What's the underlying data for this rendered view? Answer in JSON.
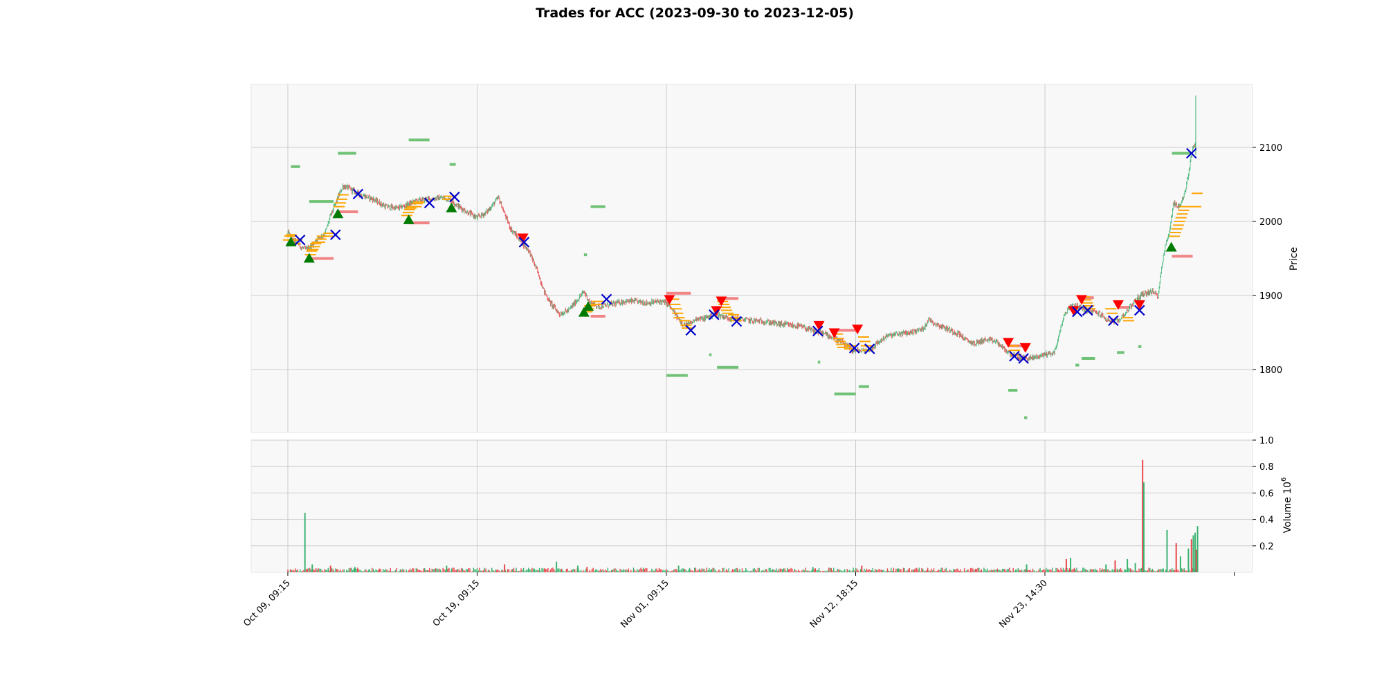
{
  "chart_data": {
    "type": "candlestick",
    "title": "Trades for ACC (2023-09-30 to 2023-12-05)",
    "colors": {
      "up": "#3cb371",
      "down": "#e8474b",
      "buy_marker": "#007a00",
      "sell_marker": "#ff0000",
      "exit_marker": "#0000cc",
      "order_level": "#ffa500",
      "support_zone": "#57b85f",
      "resistance_zone": "#f07070",
      "panel_bg": "#f8f8f8",
      "grid": "#cccccc"
    },
    "price_panel": {
      "ylabel": "Price",
      "ylim": [
        1715,
        2185
      ],
      "yticks": [
        1800,
        1900,
        2000,
        2100
      ],
      "grid": true
    },
    "volume_panel": {
      "ylabel": "Volume  10",
      "ylabel_exponent": "6",
      "ylim": [
        0,
        1.0
      ],
      "yticks": [
        0.2,
        0.4,
        0.6,
        0.8,
        1.0
      ],
      "grid": true
    },
    "x_axis": {
      "xlim": [
        -60,
        1580
      ],
      "ticks": [
        {
          "x": 0,
          "label": "Oct 09, 09:15"
        },
        {
          "x": 310,
          "label": "Oct 19, 09:15"
        },
        {
          "x": 620,
          "label": "Nov 01, 09:15"
        },
        {
          "x": 930,
          "label": "Nov 12, 18:15"
        },
        {
          "x": 1240,
          "label": "Nov 23, 14:30"
        },
        {
          "x": 1550,
          "label": ""
        }
      ]
    },
    "price_path": [
      [
        0,
        1985
      ],
      [
        8,
        1975
      ],
      [
        15,
        1972
      ],
      [
        22,
        1965
      ],
      [
        30,
        1962
      ],
      [
        40,
        1968
      ],
      [
        50,
        1978
      ],
      [
        60,
        1982
      ],
      [
        70,
        2008
      ],
      [
        80,
        2028
      ],
      [
        90,
        2048
      ],
      [
        100,
        2045
      ],
      [
        110,
        2040
      ],
      [
        120,
        2036
      ],
      [
        140,
        2030
      ],
      [
        160,
        2020
      ],
      [
        180,
        2018
      ],
      [
        195,
        2022
      ],
      [
        210,
        2028
      ],
      [
        230,
        2030
      ],
      [
        250,
        2032
      ],
      [
        265,
        2030
      ],
      [
        280,
        2020
      ],
      [
        295,
        2012
      ],
      [
        310,
        2005
      ],
      [
        325,
        2012
      ],
      [
        345,
        2032
      ],
      [
        355,
        2010
      ],
      [
        365,
        1990
      ],
      [
        380,
        1975
      ],
      [
        395,
        1960
      ],
      [
        410,
        1930
      ],
      [
        420,
        1905
      ],
      [
        430,
        1890
      ],
      [
        445,
        1875
      ],
      [
        460,
        1880
      ],
      [
        475,
        1895
      ],
      [
        485,
        1905
      ],
      [
        495,
        1890
      ],
      [
        510,
        1885
      ],
      [
        530,
        1888
      ],
      [
        550,
        1892
      ],
      [
        570,
        1892
      ],
      [
        590,
        1890
      ],
      [
        610,
        1892
      ],
      [
        620,
        1890
      ],
      [
        630,
        1880
      ],
      [
        640,
        1868
      ],
      [
        650,
        1860
      ],
      [
        660,
        1862
      ],
      [
        670,
        1870
      ],
      [
        680,
        1868
      ],
      [
        690,
        1872
      ],
      [
        700,
        1875
      ],
      [
        720,
        1870
      ],
      [
        740,
        1868
      ],
      [
        760,
        1866
      ],
      [
        780,
        1865
      ],
      [
        800,
        1862
      ],
      [
        820,
        1860
      ],
      [
        840,
        1858
      ],
      [
        860,
        1852
      ],
      [
        880,
        1848
      ],
      [
        900,
        1840
      ],
      [
        915,
        1832
      ],
      [
        925,
        1826
      ],
      [
        940,
        1825
      ],
      [
        955,
        1828
      ],
      [
        965,
        1835
      ],
      [
        980,
        1845
      ],
      [
        1000,
        1848
      ],
      [
        1020,
        1850
      ],
      [
        1040,
        1855
      ],
      [
        1050,
        1868
      ],
      [
        1060,
        1862
      ],
      [
        1080,
        1855
      ],
      [
        1100,
        1848
      ],
      [
        1110,
        1840
      ],
      [
        1125,
        1835
      ],
      [
        1140,
        1840
      ],
      [
        1160,
        1838
      ],
      [
        1175,
        1826
      ],
      [
        1190,
        1818
      ],
      [
        1200,
        1816
      ],
      [
        1215,
        1815
      ],
      [
        1230,
        1818
      ],
      [
        1245,
        1822
      ],
      [
        1255,
        1822
      ],
      [
        1262,
        1842
      ],
      [
        1270,
        1870
      ],
      [
        1280,
        1885
      ],
      [
        1290,
        1888
      ],
      [
        1300,
        1882
      ],
      [
        1310,
        1880
      ],
      [
        1320,
        1878
      ],
      [
        1330,
        1875
      ],
      [
        1340,
        1868
      ],
      [
        1350,
        1865
      ],
      [
        1360,
        1866
      ],
      [
        1370,
        1875
      ],
      [
        1380,
        1885
      ],
      [
        1390,
        1895
      ],
      [
        1400,
        1902
      ],
      [
        1415,
        1905
      ],
      [
        1425,
        1900
      ],
      [
        1435,
        1960
      ],
      [
        1445,
        1990
      ],
      [
        1450,
        2025
      ],
      [
        1460,
        2020
      ],
      [
        1470,
        2040
      ],
      [
        1478,
        2080
      ],
      [
        1482,
        2100
      ],
      [
        1486,
        2105
      ]
    ],
    "volume_spikes": [
      [
        28,
        0.45
      ],
      [
        40,
        0.06
      ],
      [
        70,
        0.05
      ],
      [
        110,
        0.04
      ],
      [
        260,
        0.05
      ],
      [
        355,
        0.06
      ],
      [
        440,
        0.08
      ],
      [
        475,
        0.05
      ],
      [
        490,
        0.04
      ],
      [
        640,
        0.05
      ],
      [
        860,
        0.04
      ],
      [
        940,
        0.05
      ],
      [
        1000,
        0.03
      ],
      [
        1210,
        0.06
      ],
      [
        1275,
        0.1
      ],
      [
        1282,
        0.11
      ],
      [
        1340,
        0.06
      ],
      [
        1355,
        0.09
      ],
      [
        1375,
        0.1
      ],
      [
        1388,
        0.07
      ],
      [
        1400,
        0.85
      ],
      [
        1402,
        0.68
      ],
      [
        1440,
        0.32
      ],
      [
        1455,
        0.22
      ],
      [
        1462,
        0.12
      ],
      [
        1475,
        0.18
      ],
      [
        1480,
        0.25
      ],
      [
        1483,
        0.28
      ],
      [
        1486,
        0.3
      ],
      [
        1488,
        0.17
      ],
      [
        1490,
        0.35
      ]
    ],
    "buy_markers": [
      [
        5,
        1972
      ],
      [
        35,
        1950
      ],
      [
        82,
        2010
      ],
      [
        198,
        2002
      ],
      [
        268,
        2018
      ],
      [
        485,
        1877
      ],
      [
        492,
        1885
      ],
      [
        1447,
        1965
      ]
    ],
    "sell_markers": [
      [
        385,
        1978
      ],
      [
        625,
        1895
      ],
      [
        702,
        1880
      ],
      [
        710,
        1893
      ],
      [
        870,
        1860
      ],
      [
        895,
        1850
      ],
      [
        933,
        1855
      ],
      [
        1180,
        1837
      ],
      [
        1208,
        1830
      ],
      [
        1287,
        1880
      ],
      [
        1300,
        1895
      ],
      [
        1360,
        1888
      ],
      [
        1395,
        1888
      ]
    ],
    "exit_markers": [
      [
        20,
        1975
      ],
      [
        78,
        1982
      ],
      [
        115,
        2037
      ],
      [
        232,
        2025
      ],
      [
        273,
        2033
      ],
      [
        387,
        1972
      ],
      [
        522,
        1895
      ],
      [
        660,
        1853
      ],
      [
        698,
        1874
      ],
      [
        735,
        1865
      ],
      [
        868,
        1852
      ],
      [
        928,
        1829
      ],
      [
        953,
        1828
      ],
      [
        1190,
        1818
      ],
      [
        1205,
        1815
      ],
      [
        1293,
        1878
      ],
      [
        1310,
        1880
      ],
      [
        1352,
        1866
      ],
      [
        1395,
        1880
      ],
      [
        1480,
        2092
      ]
    ],
    "order_levels": [
      [
        1,
        [
          1975,
          1980,
          1982
        ]
      ],
      [
        12,
        [
          1970,
          1975
        ]
      ],
      [
        37,
        [
          1955,
          1960,
          1962,
          1966,
          1970,
          1972
        ]
      ],
      [
        52,
        [
          1972,
          1976,
          1980
        ]
      ],
      [
        65,
        [
          1980,
          1984
        ]
      ],
      [
        84,
        [
          2020,
          2025,
          2030,
          2036
        ]
      ],
      [
        195,
        [
          2008,
          2012,
          2016,
          2018,
          2020
        ]
      ],
      [
        210,
        [
          2020,
          2024,
          2026
        ]
      ],
      [
        262,
        [
          2030,
          2034
        ]
      ],
      [
        490,
        [
          1878,
          1882,
          1886
        ]
      ],
      [
        505,
        [
          1888,
          1892
        ]
      ],
      [
        632,
        [
          1895,
          1888,
          1882,
          1876,
          1870
        ]
      ],
      [
        650,
        [
          1866,
          1860,
          1856
        ]
      ],
      [
        712,
        [
          1892,
          1888,
          1884,
          1880,
          1876
        ]
      ],
      [
        730,
        [
          1874,
          1870,
          1866
        ]
      ],
      [
        900,
        [
          1848,
          1842,
          1838,
          1834,
          1830
        ]
      ],
      [
        920,
        [
          1828,
          1832
        ]
      ],
      [
        943,
        [
          1844,
          1838,
          1832,
          1826
        ]
      ],
      [
        1188,
        [
          1832,
          1826,
          1820
        ]
      ],
      [
        1305,
        [
          1898,
          1894,
          1890,
          1886,
          1882
        ]
      ],
      [
        1348,
        [
          1882,
          1876
        ]
      ],
      [
        1375,
        [
          1870,
          1866
        ]
      ],
      [
        1452,
        [
          1980,
          1985,
          1990,
          1995,
          2000,
          2005
        ]
      ],
      [
        1465,
        [
          2010,
          2015,
          2020
        ]
      ],
      [
        1487,
        [
          2020,
          2038
        ]
      ]
    ],
    "zones": [
      {
        "type": "support",
        "x0": 5,
        "x1": 20,
        "y": 2074
      },
      {
        "type": "support",
        "x0": 35,
        "x1": 75,
        "y": 2027
      },
      {
        "type": "support",
        "x0": 82,
        "x1": 112,
        "y": 2092
      },
      {
        "type": "support",
        "x0": 198,
        "x1": 232,
        "y": 2110
      },
      {
        "type": "support",
        "x0": 265,
        "x1": 275,
        "y": 2077
      },
      {
        "type": "support",
        "x0": 496,
        "x1": 520,
        "y": 2020
      },
      {
        "type": "support",
        "x0": 485,
        "x1": 490,
        "y": 1955
      },
      {
        "type": "support",
        "x0": 620,
        "x1": 655,
        "y": 1792
      },
      {
        "type": "support",
        "x0": 690,
        "x1": 694,
        "y": 1820
      },
      {
        "type": "support",
        "x0": 703,
        "x1": 738,
        "y": 1803
      },
      {
        "type": "support",
        "x0": 868,
        "x1": 872,
        "y": 1810
      },
      {
        "type": "support",
        "x0": 895,
        "x1": 930,
        "y": 1767
      },
      {
        "type": "support",
        "x0": 935,
        "x1": 952,
        "y": 1777
      },
      {
        "type": "support",
        "x0": 1180,
        "x1": 1195,
        "y": 1772
      },
      {
        "type": "support",
        "x0": 1206,
        "x1": 1211,
        "y": 1735
      },
      {
        "type": "support",
        "x0": 1290,
        "x1": 1296,
        "y": 1806
      },
      {
        "type": "support",
        "x0": 1300,
        "x1": 1322,
        "y": 1815
      },
      {
        "type": "support",
        "x0": 1358,
        "x1": 1370,
        "y": 1823
      },
      {
        "type": "support",
        "x0": 1393,
        "x1": 1398,
        "y": 1831
      },
      {
        "type": "support",
        "x0": 1448,
        "x1": 1478,
        "y": 2092
      },
      {
        "type": "resistance",
        "x0": 35,
        "x1": 75,
        "y": 1950
      },
      {
        "type": "resistance",
        "x0": 82,
        "x1": 115,
        "y": 2013
      },
      {
        "type": "resistance",
        "x0": 198,
        "x1": 232,
        "y": 1998
      },
      {
        "type": "resistance",
        "x0": 496,
        "x1": 520,
        "y": 1872
      },
      {
        "type": "resistance",
        "x0": 620,
        "x1": 660,
        "y": 1903
      },
      {
        "type": "resistance",
        "x0": 703,
        "x1": 738,
        "y": 1896
      },
      {
        "type": "resistance",
        "x0": 895,
        "x1": 935,
        "y": 1853
      },
      {
        "type": "resistance",
        "x0": 1180,
        "x1": 1210,
        "y": 1832
      },
      {
        "type": "resistance",
        "x0": 1295,
        "x1": 1320,
        "y": 1897
      },
      {
        "type": "resistance",
        "x0": 1360,
        "x1": 1380,
        "y": 1884
      },
      {
        "type": "resistance",
        "x0": 1448,
        "x1": 1482,
        "y": 1953
      }
    ]
  }
}
